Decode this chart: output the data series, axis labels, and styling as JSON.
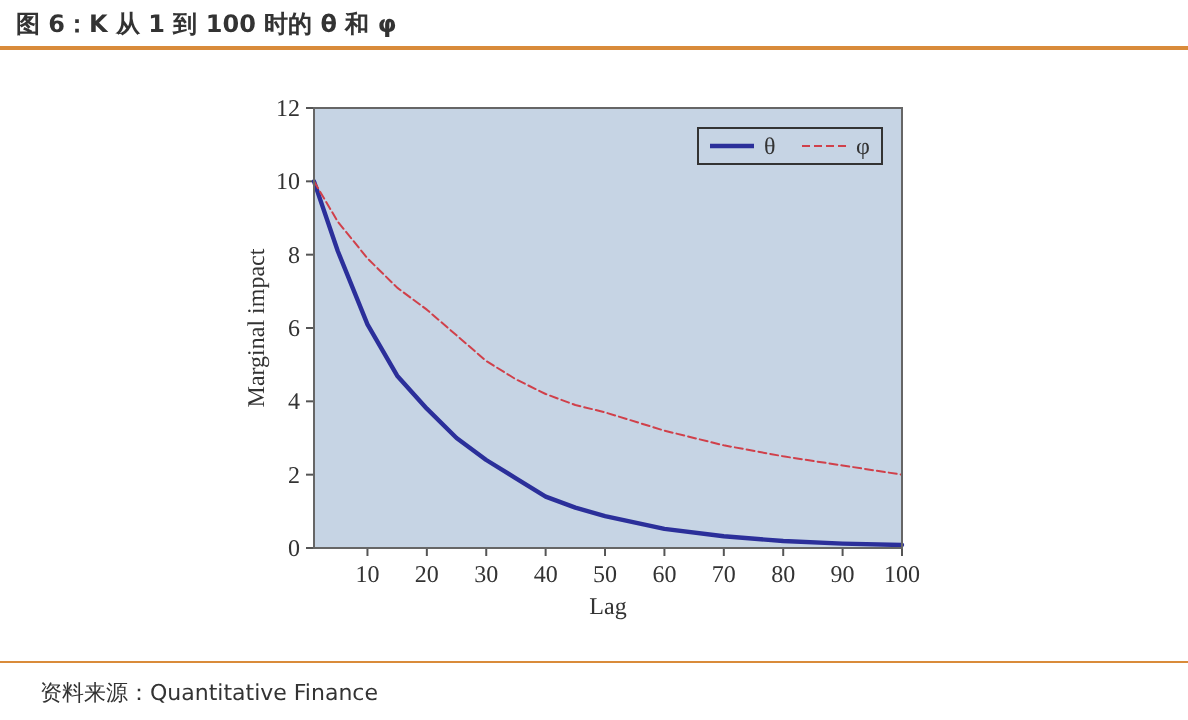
{
  "chart_data": {
    "type": "line",
    "title": "图 6：K 从 1 到 100 时的 θ 和 φ",
    "xlabel": "Lag",
    "ylabel": "Marginal impact",
    "annotations": [
      "资料来源：Quantitative Finance"
    ],
    "xlim": [
      1,
      100
    ],
    "xticks": [
      10,
      20,
      30,
      40,
      50,
      60,
      70,
      80,
      90,
      100
    ],
    "ylim": [
      0,
      12
    ],
    "yticks": [
      0,
      2,
      4,
      6,
      8,
      10,
      12
    ],
    "grid": false,
    "legend": "top right",
    "marker": "none",
    "series": [
      {
        "name": "θ",
        "color": "#2b2f9a",
        "line_style": "solid",
        "x": [
          1,
          5,
          10,
          15,
          20,
          25,
          30,
          35,
          40,
          45,
          50,
          60,
          70,
          80,
          90,
          100
        ],
        "values": [
          10,
          8.1,
          6.1,
          4.7,
          3.8,
          3.0,
          2.4,
          1.9,
          1.4,
          1.1,
          0.87,
          0.52,
          0.32,
          0.19,
          0.12,
          0.08
        ]
      },
      {
        "name": "φ",
        "color": "#d0404a",
        "line_style": "dashed",
        "x": [
          1,
          5,
          10,
          15,
          20,
          25,
          30,
          35,
          40,
          45,
          50,
          60,
          70,
          80,
          90,
          100
        ],
        "values": [
          10,
          8.9,
          7.9,
          7.1,
          6.5,
          5.8,
          5.1,
          4.6,
          4.2,
          3.9,
          3.7,
          3.2,
          2.8,
          2.5,
          2.25,
          2.0
        ]
      }
    ]
  }
}
